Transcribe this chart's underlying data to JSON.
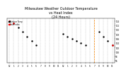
{
  "title": "Milwaukee Weather Outdoor Temperature\nvs Heat Index\n(24 Hours)",
  "title_fontsize": 3.5,
  "title_color": "#000000",
  "background_color": "#ffffff",
  "xlabel": "",
  "ylabel": "",
  "xlim": [
    -0.5,
    23.5
  ],
  "ylim": [
    95,
    115
  ],
  "hours": [
    0,
    1,
    2,
    3,
    4,
    5,
    6,
    7,
    8,
    9,
    10,
    11,
    12,
    13,
    14,
    15,
    16,
    17,
    18,
    19,
    20,
    21,
    22,
    23
  ],
  "temp": [
    114,
    113,
    111,
    109,
    107,
    105,
    103,
    null,
    null,
    null,
    null,
    null,
    108,
    107,
    106,
    105,
    104,
    103,
    null,
    null,
    109,
    107,
    105,
    103
  ],
  "heat_index": [
    114,
    113,
    null,
    null,
    null,
    null,
    null,
    null,
    null,
    null,
    null,
    null,
    null,
    null,
    null,
    null,
    null,
    null,
    null,
    null,
    null,
    null,
    null,
    103
  ],
  "xtick_labels": [
    "12",
    "1",
    "2",
    "3",
    "4",
    "5",
    "6",
    "7",
    "8",
    "9",
    "10",
    "11",
    "12",
    "1",
    "2",
    "3",
    "4",
    "5",
    "6",
    "7",
    "8",
    "9",
    "10",
    "11"
  ],
  "xtick_sub": [
    "am",
    "",
    "",
    "",
    "",
    "",
    "",
    "",
    "",
    "",
    "",
    "",
    "pm",
    "",
    "",
    "",
    "",
    "",
    "",
    "",
    "",
    "",
    "",
    ""
  ],
  "ytick_values": [
    96,
    98,
    100,
    102,
    104,
    106,
    108,
    110,
    112,
    114
  ],
  "grid_color": "#bbbbbb",
  "temp_color": "#000000",
  "heat_index_color": "#ff0000",
  "legend_temp": "Outdoor Temp",
  "legend_hi": "Heat Index",
  "dot_size": 1.5,
  "orange_vline_x": 19,
  "orange_color": "#ff8800"
}
